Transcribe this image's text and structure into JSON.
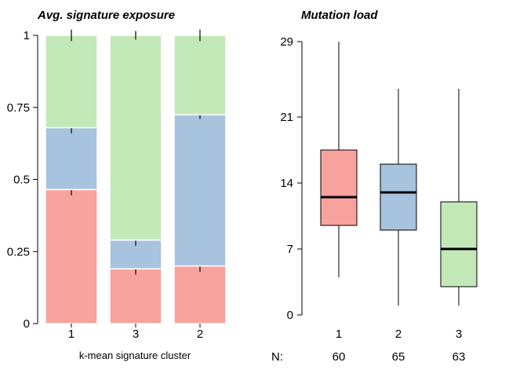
{
  "colors": {
    "red": "#F8A29E",
    "blue": "#A7C3DE",
    "green": "#C2E8B8",
    "segment_border": "#ffffff",
    "median": "#000000"
  },
  "chart_data": [
    {
      "type": "bar",
      "stacked": true,
      "title": "Avg. signature exposure",
      "xlabel": "k-mean signature cluster",
      "ylabel": "",
      "categories": [
        "1",
        "3",
        "2"
      ],
      "ylim": [
        0,
        1
      ],
      "yticks": [
        "0",
        "0.25",
        "0.5",
        "0.75",
        "1"
      ],
      "series": [
        {
          "color": "red",
          "values": [
            0.465,
            0.19,
            0.2
          ],
          "err": [
            0.02,
            0.02,
            0.02
          ]
        },
        {
          "color": "blue",
          "values": [
            0.215,
            0.1,
            0.525
          ],
          "err": [
            0.02,
            0.02,
            0.015
          ]
        },
        {
          "color": "green",
          "values": [
            0.32,
            0.71,
            0.275
          ],
          "err": [
            0.02,
            0.015,
            0.02
          ]
        }
      ]
    },
    {
      "type": "box",
      "title": "Mutation load",
      "categories": [
        "1",
        "2",
        "3"
      ],
      "ylim": [
        0,
        29
      ],
      "yticks": [
        "0",
        "7",
        "14",
        "21",
        "29"
      ],
      "n_label": "N:",
      "n": [
        "60",
        "65",
        "63"
      ],
      "boxes": [
        {
          "color": "red",
          "whisker_low": 4,
          "q1": 9.5,
          "median": 12.5,
          "q3": 17.5,
          "whisker_high": 29
        },
        {
          "color": "blue",
          "whisker_low": 1,
          "q1": 9,
          "median": 13,
          "q3": 16,
          "whisker_high": 24
        },
        {
          "color": "green",
          "whisker_low": 1,
          "q1": 3,
          "median": 7,
          "q3": 12,
          "whisker_high": 24
        }
      ]
    }
  ]
}
